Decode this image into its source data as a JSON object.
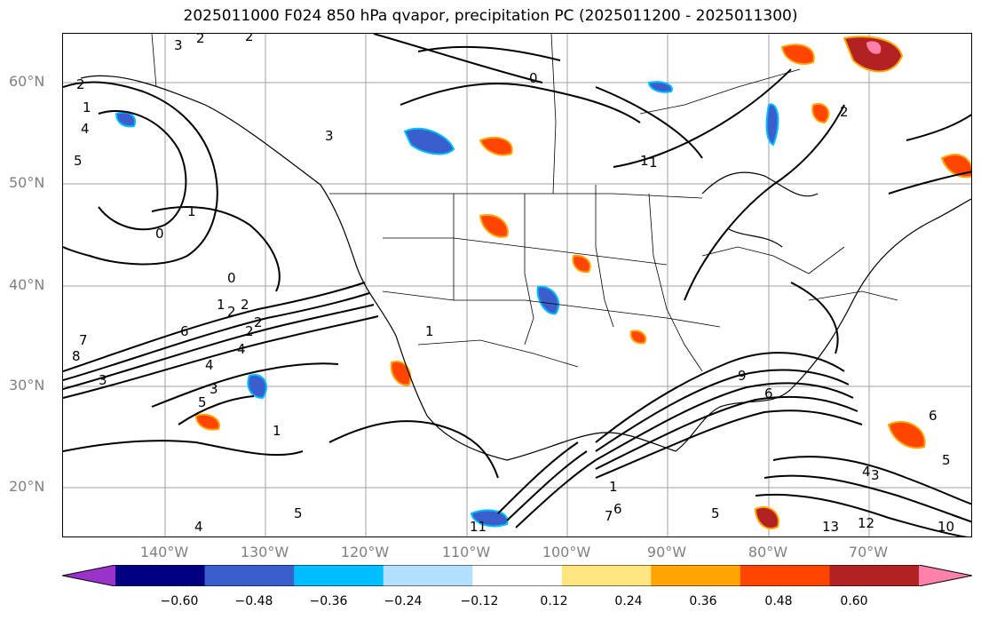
{
  "title": "2025011000 F024 850 hPa qvapor, precipitation PC (2025011200 - 2025011300)",
  "lat_labels": [
    "60°N",
    "50°N",
    "40°N",
    "30°N",
    "20°N"
  ],
  "lon_labels": [
    "140°W",
    "130°W",
    "120°W",
    "110°W",
    "100°W",
    "90°W",
    "80°W",
    "70°W"
  ],
  "colorbar": {
    "colors": [
      "#9933cc",
      "#000080",
      "#3a5fcd",
      "#00bfff",
      "#b3e0ff",
      "#ffffff",
      "#ffe680",
      "#ffa500",
      "#ff4500",
      "#b22222",
      "#ff80aa"
    ],
    "tick_labels": [
      "−0.60",
      "−0.48",
      "−0.36",
      "−0.24",
      "−0.12",
      "0.12",
      "0.24",
      "0.36",
      "0.48",
      "0.60"
    ]
  },
  "contour_labels": [
    "3",
    "2",
    "2",
    "1",
    "4",
    "5",
    "2",
    "1",
    "0",
    "3",
    "0",
    "1",
    "0",
    "2",
    "2",
    "1",
    "3",
    "4",
    "2",
    "6",
    "7",
    "8",
    "3",
    "4",
    "1",
    "5",
    "1",
    "1",
    "5",
    "2",
    "6",
    "5",
    "4",
    "9",
    "7",
    "6",
    "11",
    "13",
    "12",
    "10",
    "4",
    "3",
    "5",
    "6",
    "1",
    "2"
  ]
}
